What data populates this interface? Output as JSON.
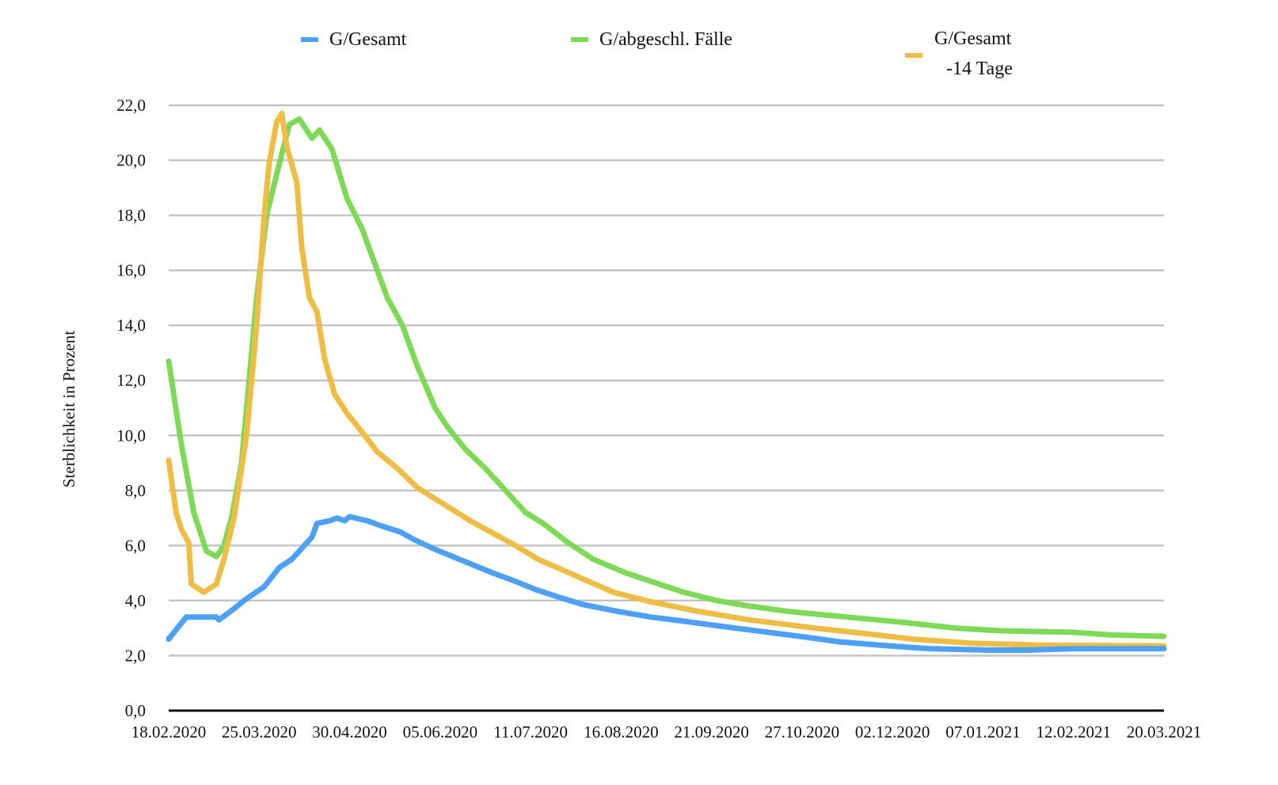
{
  "chart_data": {
    "type": "line",
    "title": "",
    "xlabel": "",
    "ylabel": "Sterblichkeit in Prozent",
    "ylim": [
      0,
      22
    ],
    "yticks": [
      "0,0",
      "2,0",
      "4,0",
      "6,0",
      "8,0",
      "10,0",
      "12,0",
      "14,0",
      "16,0",
      "18,0",
      "20,0",
      "22,0"
    ],
    "ytick_values": [
      0,
      2,
      4,
      6,
      8,
      10,
      12,
      14,
      16,
      18,
      20,
      22
    ],
    "xlim": [
      "2020-02-18",
      "2021-03-20"
    ],
    "xticks": [
      "18.02.2020",
      "25.03.2020",
      "30.04.2020",
      "05.06.2020",
      "11.07.2020",
      "16.08.2020",
      "21.09.2020",
      "27.10.2020",
      "02.12.2020",
      "07.01.2021",
      "12.02.2021",
      "20.03.2021"
    ],
    "xtick_dates": [
      "2020-02-18",
      "2020-03-25",
      "2020-04-30",
      "2020-06-05",
      "2020-07-11",
      "2020-08-16",
      "2020-09-21",
      "2020-10-27",
      "2020-12-02",
      "2021-01-07",
      "2021-02-12",
      "2021-03-20"
    ],
    "grid": true,
    "legend_position": "top",
    "series": [
      {
        "name": "G/Gesamt",
        "legend_lines": [
          "G/Gesamt"
        ],
        "color": "#4EA0F7",
        "x": [
          "2020-02-18",
          "2020-02-25",
          "2020-03-08",
          "2020-03-09",
          "2020-03-15",
          "2020-03-19",
          "2020-03-27",
          "2020-04-02",
          "2020-04-07",
          "2020-04-12",
          "2020-04-15",
          "2020-04-17",
          "2020-04-22",
          "2020-04-25",
          "2020-04-28",
          "2020-04-30",
          "2020-05-07",
          "2020-05-13",
          "2020-05-20",
          "2020-05-26",
          "2020-06-02",
          "2020-06-10",
          "2020-06-18",
          "2020-06-26",
          "2020-07-05",
          "2020-07-13",
          "2020-07-23",
          "2020-08-01",
          "2020-08-15",
          "2020-08-28",
          "2020-09-10",
          "2020-09-26",
          "2020-10-09",
          "2020-10-26",
          "2020-11-11",
          "2020-12-01",
          "2020-12-17",
          "2021-01-09",
          "2021-01-25",
          "2021-02-11",
          "2021-03-20"
        ],
        "y": [
          2.6,
          3.4,
          3.4,
          3.3,
          3.7,
          4.0,
          4.5,
          5.2,
          5.5,
          6.0,
          6.3,
          6.8,
          6.9,
          7.0,
          6.9,
          7.05,
          6.9,
          6.7,
          6.5,
          6.2,
          5.9,
          5.6,
          5.3,
          5.0,
          4.7,
          4.4,
          4.1,
          3.85,
          3.6,
          3.4,
          3.25,
          3.05,
          2.9,
          2.7,
          2.5,
          2.35,
          2.25,
          2.2,
          2.2,
          2.25,
          2.25
        ]
      },
      {
        "name": "G/abgeschl. Fälle",
        "legend_lines": [
          "G/abgeschl. Fälle"
        ],
        "color": "#7ED957",
        "x": [
          "2020-02-18",
          "2020-02-23",
          "2020-02-28",
          "2020-03-04",
          "2020-03-08",
          "2020-03-11",
          "2020-03-14",
          "2020-03-18",
          "2020-03-21",
          "2020-03-24",
          "2020-03-28",
          "2020-04-01",
          "2020-04-06",
          "2020-04-10",
          "2020-04-15",
          "2020-04-18",
          "2020-04-23",
          "2020-04-26",
          "2020-04-29",
          "2020-05-05",
          "2020-05-11",
          "2020-05-15",
          "2020-05-21",
          "2020-05-27",
          "2020-06-03",
          "2020-06-08",
          "2020-06-15",
          "2020-06-23",
          "2020-06-30",
          "2020-07-09",
          "2020-07-16",
          "2020-07-26",
          "2020-08-05",
          "2020-08-18",
          "2020-08-31",
          "2020-09-10",
          "2020-09-23",
          "2020-10-06",
          "2020-10-22",
          "2020-11-14",
          "2020-12-07",
          "2020-12-27",
          "2021-01-15",
          "2021-02-11",
          "2021-02-27",
          "2021-03-20"
        ],
        "y": [
          12.7,
          9.7,
          7.2,
          5.8,
          5.6,
          6.0,
          7.0,
          9.0,
          12.0,
          15.0,
          18.0,
          19.5,
          21.3,
          21.5,
          20.8,
          21.1,
          20.4,
          19.5,
          18.6,
          17.5,
          16.0,
          15.0,
          14.0,
          12.5,
          11.0,
          10.3,
          9.5,
          8.8,
          8.1,
          7.2,
          6.8,
          6.1,
          5.5,
          5.0,
          4.6,
          4.3,
          4.0,
          3.8,
          3.6,
          3.4,
          3.2,
          3.0,
          2.9,
          2.85,
          2.75,
          2.7
        ]
      },
      {
        "name": "G/Gesamt -14 Tage",
        "legend_lines": [
          "G/Gesamt",
          "-14 Tage"
        ],
        "color": "#EEBD45",
        "x": [
          "2020-02-18",
          "2020-02-21",
          "2020-02-23",
          "2020-02-26",
          "2020-02-27",
          "2020-03-03",
          "2020-03-08",
          "2020-03-11",
          "2020-03-15",
          "2020-03-20",
          "2020-03-24",
          "2020-03-27",
          "2020-03-29",
          "2020-04-01",
          "2020-04-03",
          "2020-04-05",
          "2020-04-09",
          "2020-04-11",
          "2020-04-14",
          "2020-04-17",
          "2020-04-20",
          "2020-04-24",
          "2020-04-29",
          "2020-05-06",
          "2020-05-11",
          "2020-05-19",
          "2020-05-27",
          "2020-06-03",
          "2020-06-10",
          "2020-06-17",
          "2020-06-25",
          "2020-07-05",
          "2020-07-14",
          "2020-07-24",
          "2020-08-03",
          "2020-08-13",
          "2020-08-28",
          "2020-09-16",
          "2020-10-06",
          "2020-11-01",
          "2020-11-21",
          "2020-12-10",
          "2021-01-02",
          "2021-01-29",
          "2021-03-20"
        ],
        "y": [
          9.1,
          7.2,
          6.6,
          6.1,
          4.6,
          4.3,
          4.6,
          5.5,
          7.0,
          10.0,
          14.0,
          18.0,
          19.9,
          21.4,
          21.7,
          20.5,
          19.2,
          16.8,
          15.0,
          14.5,
          12.8,
          11.5,
          10.8,
          10.0,
          9.4,
          8.8,
          8.1,
          7.7,
          7.3,
          6.9,
          6.5,
          6.0,
          5.5,
          5.1,
          4.7,
          4.3,
          3.95,
          3.6,
          3.3,
          3.0,
          2.8,
          2.6,
          2.45,
          2.38,
          2.35
        ]
      }
    ]
  }
}
